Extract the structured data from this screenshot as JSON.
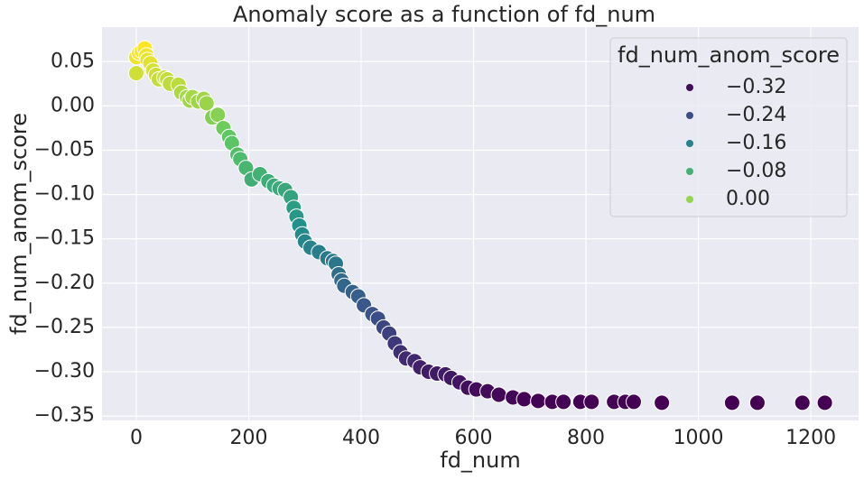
{
  "chart_data": {
    "type": "scatter",
    "title": "Anomaly score as a function of fd_num",
    "xlabel": "fd_num",
    "ylabel": "fd_num_anom_score",
    "x": [
      0,
      0,
      5,
      10,
      15,
      18,
      20,
      25,
      30,
      35,
      40,
      50,
      55,
      60,
      75,
      80,
      90,
      95,
      100,
      110,
      120,
      125,
      135,
      145,
      155,
      165,
      170,
      180,
      185,
      195,
      205,
      220,
      235,
      245,
      255,
      265,
      275,
      280,
      285,
      290,
      295,
      300,
      310,
      325,
      340,
      350,
      355,
      360,
      365,
      370,
      385,
      395,
      405,
      420,
      430,
      440,
      450,
      460,
      470,
      480,
      495,
      505,
      520,
      535,
      550,
      560,
      575,
      590,
      605,
      625,
      645,
      670,
      690,
      715,
      740,
      760,
      790,
      810,
      850,
      870,
      885,
      935,
      1060,
      1105,
      1185,
      1225
    ],
    "values": [
      0.037,
      0.055,
      0.06,
      0.062,
      0.065,
      0.057,
      0.052,
      0.048,
      0.04,
      0.035,
      0.03,
      0.032,
      0.03,
      0.025,
      0.024,
      0.015,
      0.01,
      0.006,
      0.01,
      0.005,
      0.008,
      0.003,
      -0.013,
      -0.01,
      -0.025,
      -0.035,
      -0.042,
      -0.055,
      -0.06,
      -0.07,
      -0.083,
      -0.077,
      -0.085,
      -0.09,
      -0.093,
      -0.095,
      -0.103,
      -0.115,
      -0.125,
      -0.135,
      -0.145,
      -0.153,
      -0.16,
      -0.165,
      -0.172,
      -0.175,
      -0.178,
      -0.19,
      -0.197,
      -0.203,
      -0.21,
      -0.215,
      -0.225,
      -0.235,
      -0.24,
      -0.25,
      -0.257,
      -0.268,
      -0.278,
      -0.285,
      -0.288,
      -0.295,
      -0.3,
      -0.302,
      -0.303,
      -0.307,
      -0.312,
      -0.318,
      -0.32,
      -0.322,
      -0.326,
      -0.329,
      -0.331,
      -0.333,
      -0.334,
      -0.334,
      -0.334,
      -0.334,
      -0.334,
      -0.334,
      -0.334,
      -0.335,
      -0.335,
      -0.335,
      -0.335,
      -0.335
    ],
    "colormap": "viridis",
    "xlim": [
      -61,
      1285
    ],
    "ylim": [
      -0.355,
      0.089
    ],
    "xticks": [
      0,
      200,
      400,
      600,
      800,
      1000,
      1200
    ],
    "yticks": [
      {
        "value": 0.05,
        "label": "0.05"
      },
      {
        "value": 0,
        "label": "0.00"
      },
      {
        "value": -0.05,
        "label": "−0.05"
      },
      {
        "value": -0.1,
        "label": "−0.10"
      },
      {
        "value": -0.15,
        "label": "−0.15"
      },
      {
        "value": -0.2,
        "label": "−0.20"
      },
      {
        "value": -0.25,
        "label": "−0.25"
      },
      {
        "value": -0.3,
        "label": "−0.30"
      },
      {
        "value": -0.35,
        "label": "−0.35"
      }
    ],
    "grid": true,
    "legend": {
      "title": "fd_num_anom_score",
      "position": "upper right",
      "entries": [
        {
          "value": -0.32,
          "label": "−0.32"
        },
        {
          "value": -0.24,
          "label": "−0.24"
        },
        {
          "value": -0.16,
          "label": "−0.16"
        },
        {
          "value": -0.08,
          "label": "−0.08"
        },
        {
          "value": 0,
          "label": "0.00"
        }
      ]
    }
  }
}
